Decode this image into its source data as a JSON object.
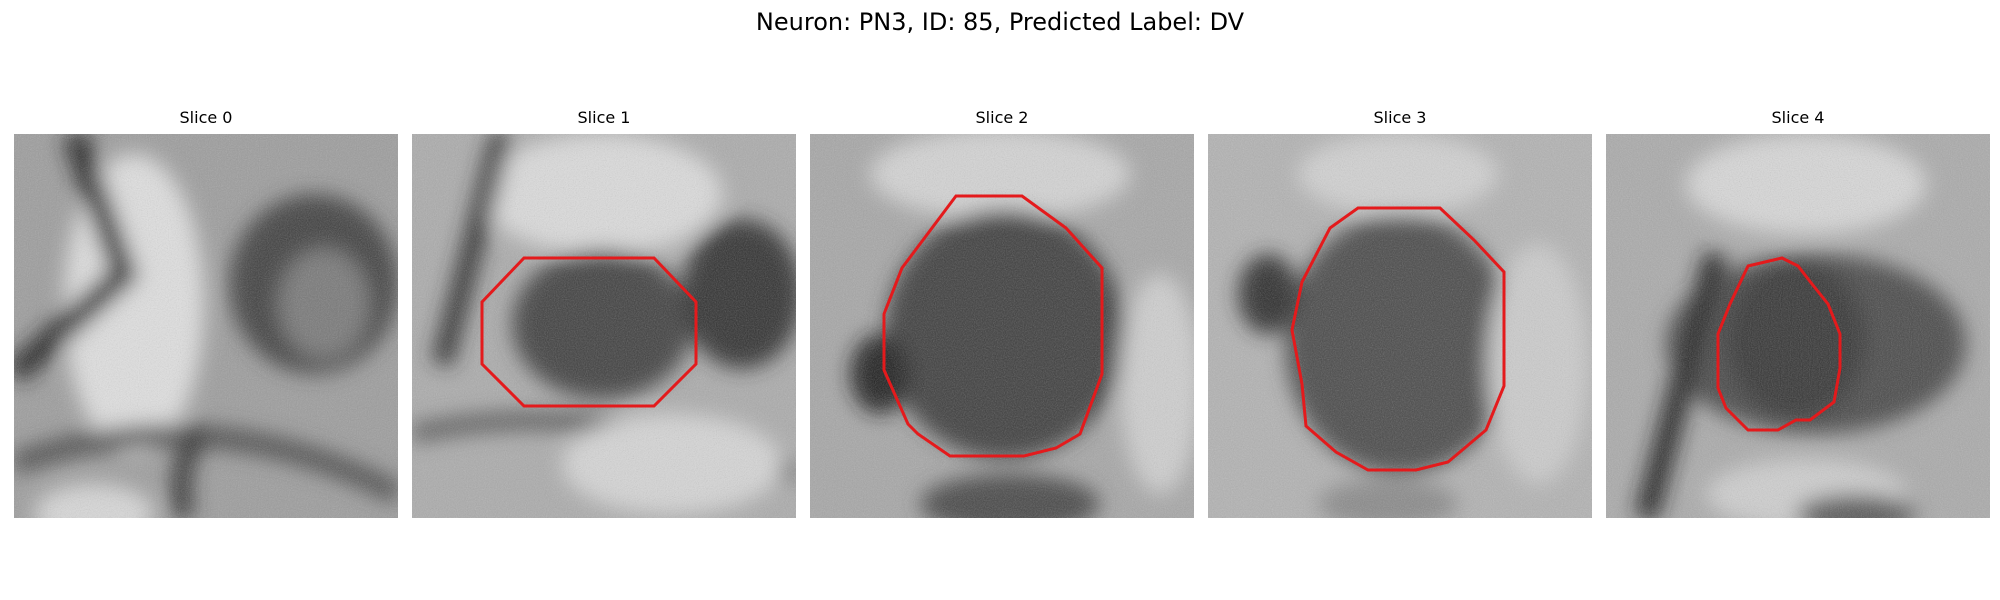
{
  "figure": {
    "title": "Neuron: PN3, ID: 85, Predicted Label: DV"
  },
  "colors": {
    "contour": "#e41a1c"
  },
  "panels": [
    {
      "title": "Slice 0",
      "has_contour": false
    },
    {
      "title": "Slice 1",
      "has_contour": true
    },
    {
      "title": "Slice 2",
      "has_contour": true
    },
    {
      "title": "Slice 3",
      "has_contour": true
    },
    {
      "title": "Slice 4",
      "has_contour": true
    }
  ]
}
